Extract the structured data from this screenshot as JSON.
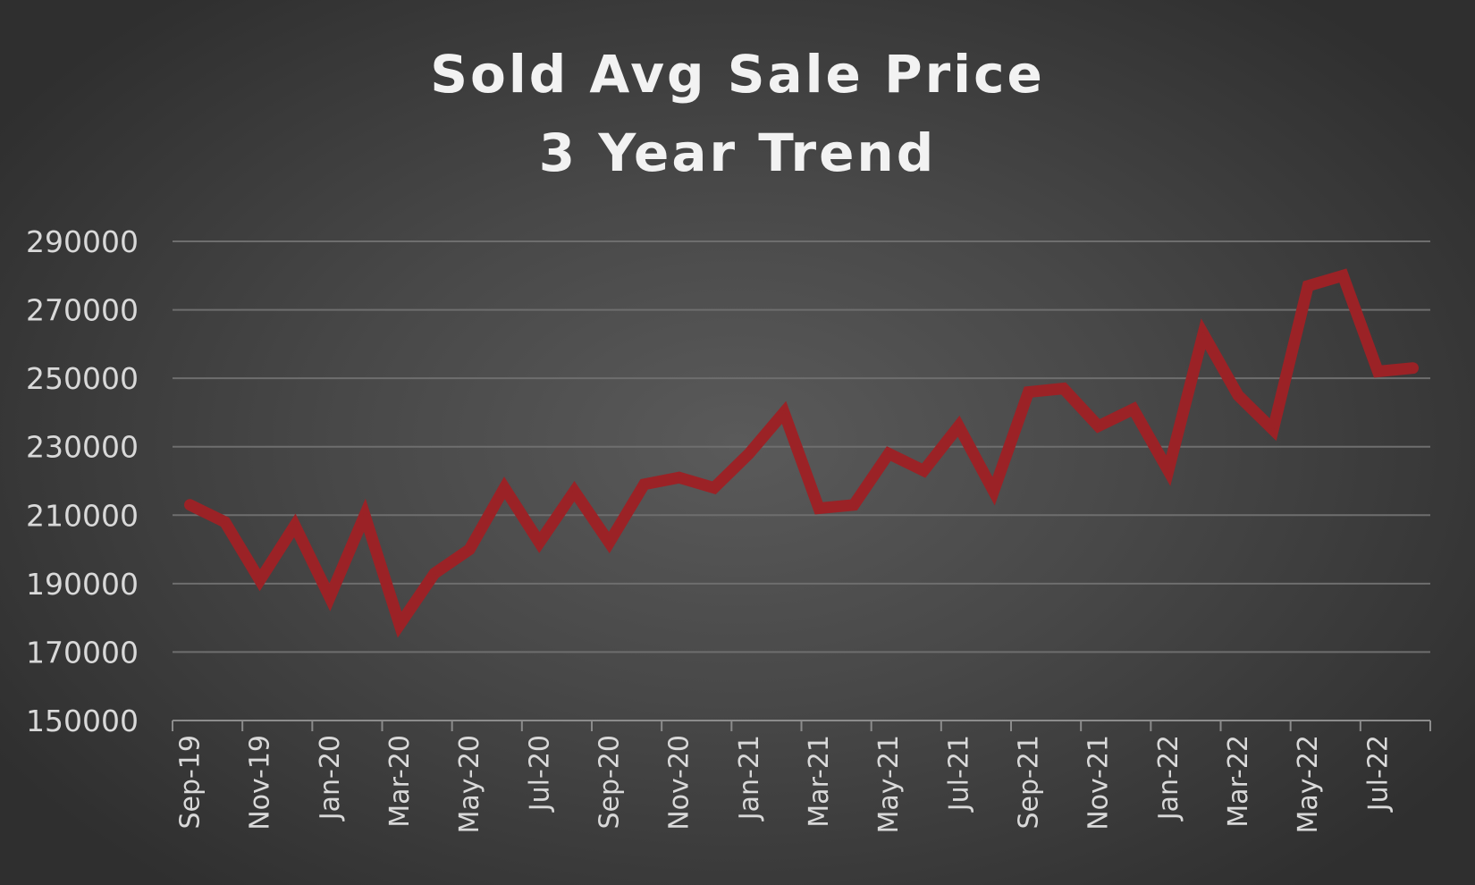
{
  "chart_data": {
    "type": "line",
    "title_lines": [
      "Sold Avg Sale Price",
      "3 Year Trend"
    ],
    "xlabel": "",
    "ylabel": "",
    "ylim": [
      150000,
      290000
    ],
    "yticks": [
      "150000",
      "170000",
      "190000",
      "210000",
      "230000",
      "250000",
      "270000",
      "290000"
    ],
    "grid": true,
    "legend": "none",
    "x_tick_labels": [
      "Sep-19",
      "Nov-19",
      "Jan-20",
      "Mar-20",
      "May-20",
      "Jul-20",
      "Sep-20",
      "Nov-20",
      "Jan-21",
      "Mar-21",
      "May-21",
      "Jul-21",
      "Sep-21",
      "Nov-21",
      "Jan-22",
      "Mar-22",
      "May-22",
      "Jul-22"
    ],
    "categories": [
      "Sep-19",
      "Oct-19",
      "Nov-19",
      "Dec-19",
      "Jan-20",
      "Feb-20",
      "Mar-20",
      "Apr-20",
      "May-20",
      "Jun-20",
      "Jul-20",
      "Aug-20",
      "Sep-20",
      "Oct-20",
      "Nov-20",
      "Dec-20",
      "Jan-21",
      "Feb-21",
      "Mar-21",
      "Apr-21",
      "May-21",
      "Jun-21",
      "Jul-21",
      "Aug-21",
      "Sep-21",
      "Oct-21",
      "Nov-21",
      "Dec-21",
      "Jan-22",
      "Feb-22",
      "Mar-22",
      "Apr-22",
      "May-22",
      "Jun-22",
      "Jul-22",
      "Aug-22"
    ],
    "series": [
      {
        "values": [
          213000,
          208000,
          191000,
          207000,
          186000,
          210000,
          178000,
          193000,
          200000,
          218000,
          202000,
          217000,
          202000,
          219000,
          221000,
          218000,
          228000,
          240000,
          212000,
          213000,
          228000,
          223000,
          236000,
          217000,
          246000,
          247000,
          236000,
          241000,
          223000,
          263000,
          245000,
          235000,
          277000,
          280000,
          252000,
          253000
        ],
        "color": "#9b2226"
      }
    ],
    "colors": {
      "line": "#9b2226",
      "grid": "#6e6e6e",
      "axis": "#8c8c8c",
      "text": "#d9d9d9",
      "title": "#f2f2f2"
    }
  }
}
